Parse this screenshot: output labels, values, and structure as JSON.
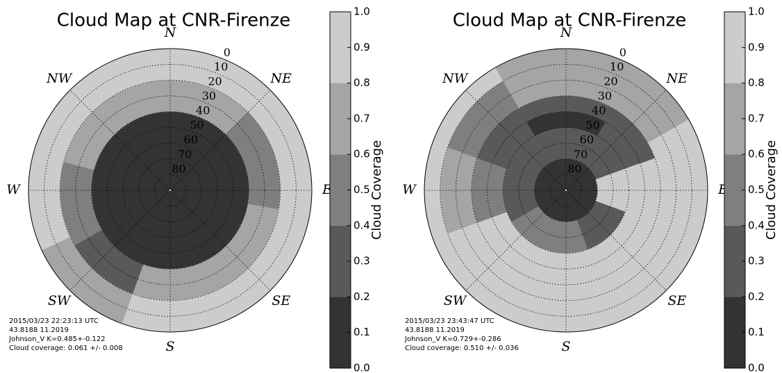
{
  "chart_data": [
    {
      "type": "polar",
      "title": "Cloud Map at CNR-Firenze",
      "rlim": [
        90,
        0
      ],
      "rticks": [
        0,
        10,
        20,
        30,
        40,
        50,
        60,
        70,
        80
      ],
      "directions": [
        {
          "label": "N",
          "angle": 0
        },
        {
          "label": "NE",
          "angle": 45
        },
        {
          "label": "E",
          "angle": 90
        },
        {
          "label": "SE",
          "angle": 135
        },
        {
          "label": "S",
          "angle": 180
        },
        {
          "label": "SW",
          "angle": 225
        },
        {
          "label": "W",
          "angle": 270
        },
        {
          "label": "NW",
          "angle": 315
        }
      ],
      "sectors": [
        {
          "az": [
            0,
            360
          ],
          "el": [
            40,
            90
          ],
          "value": 0.1
        },
        {
          "az": [
            315,
            405
          ],
          "el": [
            20,
            40
          ],
          "value": 0.7
        },
        {
          "az": [
            45,
            100
          ],
          "el": [
            20,
            40
          ],
          "value": 0.5
        },
        {
          "az": [
            100,
            200
          ],
          "el": [
            20,
            40
          ],
          "value": 0.7
        },
        {
          "az": [
            200,
            240
          ],
          "el": [
            20,
            40
          ],
          "value": 0.3
        },
        {
          "az": [
            240,
            285
          ],
          "el": [
            20,
            40
          ],
          "value": 0.5
        },
        {
          "az": [
            285,
            315
          ],
          "el": [
            20,
            40
          ],
          "value": 0.7
        },
        {
          "az": [
            0,
            200
          ],
          "el": [
            0,
            20
          ],
          "value": 0.9
        },
        {
          "az": [
            200,
            245
          ],
          "el": [
            0,
            20
          ],
          "value": 0.7
        },
        {
          "az": [
            245,
            360
          ],
          "el": [
            0,
            20
          ],
          "value": 0.9
        }
      ],
      "levels": [
        0,
        0.2,
        0.4,
        0.6,
        0.8,
        1.0
      ],
      "colors": [
        "#333333",
        "#595959",
        "#7f7f7f",
        "#a5a5a5",
        "#cccccc"
      ],
      "cticks": [
        {
          "value": 0,
          "label": "0.0"
        },
        0.1,
        0.2,
        0.3,
        0.4,
        0.5,
        0.6,
        0.7,
        0.8,
        0.9,
        {
          "value": 1,
          "label": "1.0"
        }
      ],
      "clabel": "Cloud Coverage",
      "annotations": [
        "2015/03/23 22:23:13 UTC",
        "43.8188     11.2019",
        "Johnson_V    K=0.485+-0.122",
        "Cloud coverage: 0.061 +/- 0.008"
      ]
    },
    {
      "type": "polar",
      "title": "Cloud Map at CNR-Firenze",
      "rlim": [
        90,
        0
      ],
      "rticks": [
        0,
        10,
        20,
        30,
        40,
        50,
        60,
        70,
        80
      ],
      "directions": [
        {
          "label": "N",
          "angle": 0
        },
        {
          "label": "NE",
          "angle": 45
        },
        {
          "label": "E",
          "angle": 90
        },
        {
          "label": "SE",
          "angle": 135
        },
        {
          "label": "S",
          "angle": 180
        },
        {
          "label": "SW",
          "angle": 225
        },
        {
          "label": "W",
          "angle": 270
        },
        {
          "label": "NW",
          "angle": 315
        }
      ],
      "sectors": [
        {
          "az": [
            0,
            360
          ],
          "el": [
            70,
            90
          ],
          "value": 0.1
        },
        {
          "az": [
            340,
            430
          ],
          "el": [
            50,
            70
          ],
          "value": 0.3
        },
        {
          "az": [
            70,
            110
          ],
          "el": [
            50,
            70
          ],
          "value": 0.9
        },
        {
          "az": [
            110,
            160
          ],
          "el": [
            50,
            70
          ],
          "value": 0.3
        },
        {
          "az": [
            160,
            240
          ],
          "el": [
            50,
            70
          ],
          "value": 0.5
        },
        {
          "az": [
            240,
            340
          ],
          "el": [
            50,
            70
          ],
          "value": 0.3
        },
        {
          "az": [
            330,
            390
          ],
          "el": [
            40,
            50
          ],
          "value": 0.1
        },
        {
          "az": [
            30,
            70
          ],
          "el": [
            40,
            50
          ],
          "value": 0.3
        },
        {
          "az": [
            70,
            250
          ],
          "el": [
            30,
            50
          ],
          "value": 0.9
        },
        {
          "az": [
            250,
            290
          ],
          "el": [
            30,
            50
          ],
          "value": 0.5
        },
        {
          "az": [
            290,
            330
          ],
          "el": [
            30,
            50
          ],
          "value": 0.3
        },
        {
          "az": [
            330,
            390
          ],
          "el": [
            30,
            40
          ],
          "value": 0.3
        },
        {
          "az": [
            30,
            70
          ],
          "el": [
            30,
            40
          ],
          "value": 0.3
        },
        {
          "az": [
            330,
            420
          ],
          "el": [
            10,
            30
          ],
          "value": 0.7
        },
        {
          "az": [
            60,
            110
          ],
          "el": [
            10,
            30
          ],
          "value": 0.9
        },
        {
          "az": [
            110,
            250
          ],
          "el": [
            0,
            30
          ],
          "value": 0.9
        },
        {
          "az": [
            250,
            290
          ],
          "el": [
            10,
            30
          ],
          "value": 0.7
        },
        {
          "az": [
            290,
            330
          ],
          "el": [
            10,
            30
          ],
          "value": 0.5
        },
        {
          "az": [
            330,
            420
          ],
          "el": [
            0,
            10
          ],
          "value": 0.7
        },
        {
          "az": [
            60,
            110
          ],
          "el": [
            0,
            10
          ],
          "value": 0.9
        },
        {
          "az": [
            250,
            330
          ],
          "el": [
            0,
            10
          ],
          "value": 0.9
        }
      ],
      "levels": [
        0,
        0.2,
        0.4,
        0.6,
        0.8,
        1.0
      ],
      "colors": [
        "#333333",
        "#595959",
        "#7f7f7f",
        "#a5a5a5",
        "#cccccc"
      ],
      "cticks": [
        {
          "value": 0,
          "label": "0.0"
        },
        0.1,
        0.2,
        0.3,
        0.4,
        0.5,
        0.6,
        0.7,
        0.8,
        0.9,
        {
          "value": 1,
          "label": "1.0"
        }
      ],
      "clabel": "Cloud Coverage",
      "annotations": [
        "2015/03/23 23:43:47 UTC",
        "43.8188     11.2019",
        "Johnson_V    K=0.729+-0.286",
        "Cloud coverage: 0.510 +/- 0.036"
      ]
    }
  ]
}
